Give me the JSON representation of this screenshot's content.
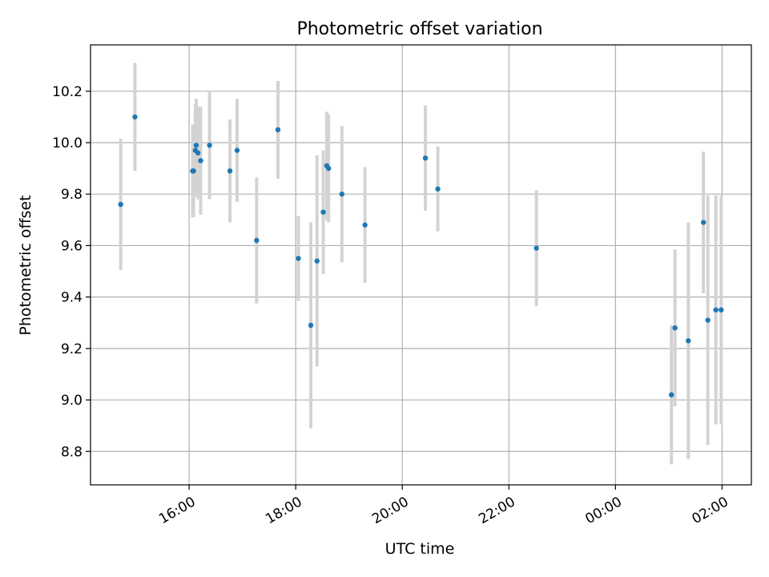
{
  "chart_data": {
    "type": "scatter",
    "title": "Photometric offset variation",
    "xlabel": "UTC time",
    "ylabel": "Photometric offset",
    "x_range_hours": [
      14.15,
      26.55
    ],
    "ylim": [
      8.67,
      10.38
    ],
    "grid": true,
    "x_ticks": [
      {
        "hour": 16,
        "label": "16:00"
      },
      {
        "hour": 18,
        "label": "18:00"
      },
      {
        "hour": 20,
        "label": "20:00"
      },
      {
        "hour": 22,
        "label": "22:00"
      },
      {
        "hour": 24,
        "label": "00:00"
      },
      {
        "hour": 26,
        "label": "02:00"
      }
    ],
    "y_ticks": [
      {
        "value": 8.8,
        "label": "8.8"
      },
      {
        "value": 9.0,
        "label": "9.0"
      },
      {
        "value": 9.2,
        "label": "9.2"
      },
      {
        "value": 9.4,
        "label": "9.4"
      },
      {
        "value": 9.6,
        "label": "9.6"
      },
      {
        "value": 9.8,
        "label": "9.8"
      },
      {
        "value": 10.0,
        "label": "10.0"
      },
      {
        "value": 10.2,
        "label": "10.2"
      }
    ],
    "colors": {
      "marker": "#1f77b4",
      "errorbar": "#d3d3d3",
      "grid": "#b0b0b0"
    },
    "series": [
      {
        "points": [
          {
            "time": "14:43",
            "y": 9.76,
            "err": 0.255
          },
          {
            "time": "14:59",
            "y": 10.1,
            "err": 0.21
          },
          {
            "time": "16:04",
            "y": 9.89,
            "err": 0.18
          },
          {
            "time": "16:05",
            "y": 9.89,
            "err": 0.18
          },
          {
            "time": "16:07",
            "y": 9.97,
            "err": 0.18
          },
          {
            "time": "16:08",
            "y": 9.99,
            "err": 0.18
          },
          {
            "time": "16:10",
            "y": 9.96,
            "err": 0.18
          },
          {
            "time": "16:13",
            "y": 9.93,
            "err": 0.21
          },
          {
            "time": "16:23",
            "y": 9.99,
            "err": 0.21
          },
          {
            "time": "16:46",
            "y": 9.89,
            "err": 0.2
          },
          {
            "time": "16:54",
            "y": 9.97,
            "err": 0.2
          },
          {
            "time": "17:16",
            "y": 9.62,
            "err": 0.245
          },
          {
            "time": "17:40",
            "y": 10.05,
            "err": 0.19
          },
          {
            "time": "18:03",
            "y": 9.55,
            "err": 0.165
          },
          {
            "time": "18:17",
            "y": 9.29,
            "err": 0.4
          },
          {
            "time": "18:24",
            "y": 9.54,
            "err": 0.41
          },
          {
            "time": "18:31",
            "y": 9.73,
            "err": 0.24
          },
          {
            "time": "18:35",
            "y": 9.91,
            "err": 0.21
          },
          {
            "time": "18:37",
            "y": 9.9,
            "err": 0.21
          },
          {
            "time": "18:52",
            "y": 9.8,
            "err": 0.265
          },
          {
            "time": "19:18",
            "y": 9.68,
            "err": 0.225
          },
          {
            "time": "20:26",
            "y": 9.94,
            "err": 0.205
          },
          {
            "time": "20:40",
            "y": 9.82,
            "err": 0.165
          },
          {
            "time": "22:31",
            "y": 9.59,
            "err": 0.225
          },
          {
            "time": "01:03",
            "y": 9.02,
            "err": 0.27
          },
          {
            "time": "01:07",
            "y": 9.28,
            "err": 0.305
          },
          {
            "time": "01:22",
            "y": 9.23,
            "err": 0.46
          },
          {
            "time": "01:39",
            "y": 9.69,
            "err": 0.275
          },
          {
            "time": "01:44",
            "y": 9.31,
            "err": 0.485
          },
          {
            "time": "01:53",
            "y": 9.35,
            "err": 0.445
          },
          {
            "time": "01:59",
            "y": 9.35,
            "err": 0.445
          }
        ]
      }
    ]
  }
}
